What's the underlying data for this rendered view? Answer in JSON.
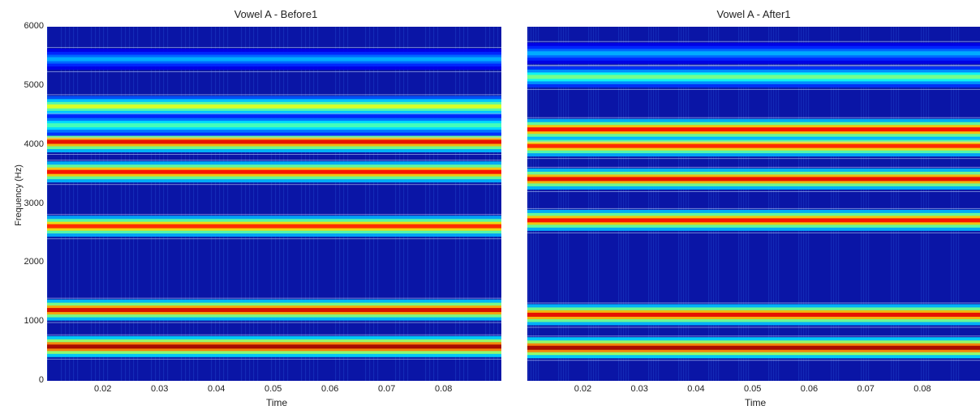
{
  "chart_data": [
    {
      "type": "heatmap",
      "title": "Vowel A - Before1",
      "xlabel": "Time",
      "ylabel": "Frequency (Hz)",
      "xlim": [
        0.01,
        0.09
      ],
      "ylim": [
        0,
        6000
      ],
      "xticks": [
        0.02,
        0.03,
        0.04,
        0.05,
        0.06,
        0.07,
        0.08
      ],
      "yticks": [
        0,
        1000,
        2000,
        3000,
        4000,
        5000,
        6000
      ],
      "colormap": "jet",
      "background_color": "#0a15a6",
      "bands": [
        {
          "freq": 580,
          "intensity": 0.97
        },
        {
          "freq": 1200,
          "intensity": 0.92
        },
        {
          "freq": 2620,
          "intensity": 0.85
        },
        {
          "freq": 3540,
          "intensity": 0.88
        },
        {
          "freq": 4050,
          "intensity": 0.9
        },
        {
          "freq": 4650,
          "intensity": 0.6
        },
        {
          "freq": 4330,
          "intensity": 0.45
        },
        {
          "freq": 5450,
          "intensity": 0.3
        }
      ]
    },
    {
      "type": "heatmap",
      "title": "Vowel A - After1",
      "xlabel": "Time",
      "ylabel": "",
      "xlim": [
        0.01,
        0.09
      ],
      "ylim": [
        0,
        6000
      ],
      "xticks": [
        0.02,
        0.03,
        0.04,
        0.05,
        0.06,
        0.07,
        0.08
      ],
      "yticks": [],
      "colormap": "jet",
      "background_color": "#0a15a6",
      "bands": [
        {
          "freq": 560,
          "intensity": 0.97
        },
        {
          "freq": 1120,
          "intensity": 0.9
        },
        {
          "freq": 2720,
          "intensity": 0.88
        },
        {
          "freq": 3420,
          "intensity": 0.9
        },
        {
          "freq": 3980,
          "intensity": 0.85
        },
        {
          "freq": 4260,
          "intensity": 0.88
        },
        {
          "freq": 5150,
          "intensity": 0.5
        },
        {
          "freq": 5550,
          "intensity": 0.3
        }
      ]
    }
  ]
}
